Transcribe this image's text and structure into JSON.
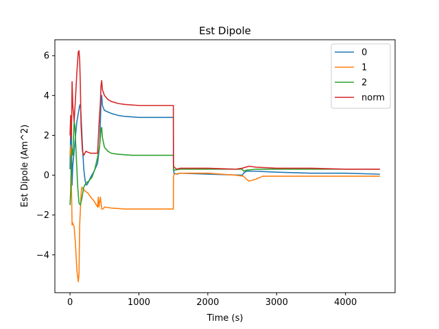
{
  "chart_data": {
    "type": "line",
    "title": "Est Dipole",
    "xlabel": "Time (s)",
    "ylabel": "Est Dipole (Am^2)",
    "xlim": [
      -220,
      4720
    ],
    "ylim": [
      -5.9,
      6.8
    ],
    "xticks": [
      0,
      1000,
      2000,
      3000,
      4000
    ],
    "yticks": [
      -4,
      -2,
      0,
      2,
      4,
      6
    ],
    "grid": false,
    "legend_position": "top-right",
    "series": [
      {
        "name": "0",
        "color": "#1f77b4",
        "points": [
          [
            0,
            0.3
          ],
          [
            10,
            2.5
          ],
          [
            20,
            2.0
          ],
          [
            30,
            -0.5
          ],
          [
            40,
            0.5
          ],
          [
            60,
            1.2
          ],
          [
            80,
            2.0
          ],
          [
            100,
            2.7
          ],
          [
            120,
            3.1
          ],
          [
            140,
            3.5
          ],
          [
            150,
            3.55
          ],
          [
            160,
            3.0
          ],
          [
            180,
            1.5
          ],
          [
            200,
            0.3
          ],
          [
            220,
            -0.3
          ],
          [
            240,
            -0.5
          ],
          [
            260,
            -0.4
          ],
          [
            300,
            -0.1
          ],
          [
            350,
            0.2
          ],
          [
            400,
            0.6
          ],
          [
            430,
            1.5
          ],
          [
            450,
            3.7
          ],
          [
            460,
            4.0
          ],
          [
            470,
            3.5
          ],
          [
            500,
            3.25
          ],
          [
            600,
            3.1
          ],
          [
            700,
            3.0
          ],
          [
            800,
            2.95
          ],
          [
            1000,
            2.9
          ],
          [
            1200,
            2.9
          ],
          [
            1500,
            2.9
          ],
          [
            1502,
            0.3
          ],
          [
            1510,
            0.1
          ],
          [
            1550,
            0.05
          ],
          [
            1600,
            0.1
          ],
          [
            2000,
            0.05
          ],
          [
            2500,
            0.0
          ],
          [
            2520,
            0.1
          ],
          [
            2560,
            0.2
          ],
          [
            2700,
            0.2
          ],
          [
            3000,
            0.15
          ],
          [
            3500,
            0.1
          ],
          [
            4000,
            0.1
          ],
          [
            4500,
            0.05
          ]
        ]
      },
      {
        "name": "1",
        "color": "#ff7f0e",
        "points": [
          [
            0,
            1.0
          ],
          [
            10,
            1.5
          ],
          [
            20,
            -0.5
          ],
          [
            30,
            -2.5
          ],
          [
            40,
            -2.4
          ],
          [
            60,
            -2.6
          ],
          [
            80,
            -3.5
          ],
          [
            100,
            -4.8
          ],
          [
            120,
            -5.35
          ],
          [
            130,
            -5.0
          ],
          [
            140,
            -2.5
          ],
          [
            160,
            -1.0
          ],
          [
            170,
            -0.6
          ],
          [
            190,
            -0.7
          ],
          [
            220,
            -0.8
          ],
          [
            260,
            -0.9
          ],
          [
            300,
            -1.1
          ],
          [
            350,
            -1.3
          ],
          [
            400,
            -1.6
          ],
          [
            410,
            -1.1
          ],
          [
            420,
            -1.6
          ],
          [
            440,
            -1.1
          ],
          [
            460,
            -1.7
          ],
          [
            480,
            -1.7
          ],
          [
            500,
            -1.6
          ],
          [
            600,
            -1.65
          ],
          [
            800,
            -1.7
          ],
          [
            1000,
            -1.7
          ],
          [
            1200,
            -1.7
          ],
          [
            1500,
            -1.7
          ],
          [
            1502,
            -0.1
          ],
          [
            1510,
            0.05
          ],
          [
            1600,
            0.1
          ],
          [
            2000,
            0.1
          ],
          [
            2400,
            0.0
          ],
          [
            2520,
            -0.05
          ],
          [
            2560,
            -0.2
          ],
          [
            2600,
            -0.3
          ],
          [
            2700,
            -0.2
          ],
          [
            2800,
            -0.05
          ],
          [
            3000,
            -0.05
          ],
          [
            3500,
            -0.05
          ],
          [
            4000,
            -0.05
          ],
          [
            4500,
            -0.05
          ]
        ]
      },
      {
        "name": "2",
        "color": "#2ca02c",
        "points": [
          [
            0,
            -1.5
          ],
          [
            10,
            -0.8
          ],
          [
            20,
            1.0
          ],
          [
            30,
            1.3
          ],
          [
            40,
            1.0
          ],
          [
            60,
            2.7
          ],
          [
            70,
            2.5
          ],
          [
            90,
            1.0
          ],
          [
            110,
            -0.5
          ],
          [
            130,
            -1.4
          ],
          [
            150,
            -1.5
          ],
          [
            170,
            -1.2
          ],
          [
            200,
            -0.6
          ],
          [
            230,
            -0.4
          ],
          [
            270,
            -0.3
          ],
          [
            320,
            -0.1
          ],
          [
            360,
            0.3
          ],
          [
            400,
            0.9
          ],
          [
            430,
            1.5
          ],
          [
            450,
            2.3
          ],
          [
            460,
            2.4
          ],
          [
            470,
            1.9
          ],
          [
            500,
            1.4
          ],
          [
            550,
            1.2
          ],
          [
            600,
            1.1
          ],
          [
            700,
            1.05
          ],
          [
            900,
            1.0
          ],
          [
            1200,
            1.0
          ],
          [
            1500,
            1.0
          ],
          [
            1502,
            0.3
          ],
          [
            1510,
            0.25
          ],
          [
            1600,
            0.3
          ],
          [
            2000,
            0.3
          ],
          [
            2400,
            0.3
          ],
          [
            2500,
            0.3
          ],
          [
            2520,
            0.2
          ],
          [
            2560,
            0.25
          ],
          [
            2700,
            0.3
          ],
          [
            3000,
            0.3
          ],
          [
            3500,
            0.3
          ],
          [
            4000,
            0.3
          ],
          [
            4500,
            0.3
          ]
        ]
      },
      {
        "name": "norm",
        "color": "#d62728",
        "points": [
          [
            0,
            2.0
          ],
          [
            10,
            3.0
          ],
          [
            20,
            1.8
          ],
          [
            30,
            4.7
          ],
          [
            40,
            3.5
          ],
          [
            60,
            2.7
          ],
          [
            80,
            3.9
          ],
          [
            100,
            5.2
          ],
          [
            120,
            6.2
          ],
          [
            130,
            6.25
          ],
          [
            140,
            5.8
          ],
          [
            150,
            4.5
          ],
          [
            160,
            2.5
          ],
          [
            180,
            1.2
          ],
          [
            200,
            1.0
          ],
          [
            230,
            1.2
          ],
          [
            260,
            1.15
          ],
          [
            300,
            1.1
          ],
          [
            350,
            1.1
          ],
          [
            400,
            1.1
          ],
          [
            420,
            2.5
          ],
          [
            440,
            3.6
          ],
          [
            450,
            4.5
          ],
          [
            460,
            4.75
          ],
          [
            470,
            4.3
          ],
          [
            500,
            4.0
          ],
          [
            550,
            3.8
          ],
          [
            600,
            3.7
          ],
          [
            700,
            3.6
          ],
          [
            800,
            3.55
          ],
          [
            1000,
            3.5
          ],
          [
            1200,
            3.5
          ],
          [
            1500,
            3.5
          ],
          [
            1502,
            0.5
          ],
          [
            1510,
            0.4
          ],
          [
            1550,
            0.3
          ],
          [
            1600,
            0.35
          ],
          [
            2000,
            0.35
          ],
          [
            2400,
            0.3
          ],
          [
            2500,
            0.35
          ],
          [
            2550,
            0.4
          ],
          [
            2600,
            0.45
          ],
          [
            2700,
            0.4
          ],
          [
            3000,
            0.35
          ],
          [
            3500,
            0.35
          ],
          [
            4000,
            0.3
          ],
          [
            4500,
            0.3
          ]
        ]
      }
    ]
  }
}
